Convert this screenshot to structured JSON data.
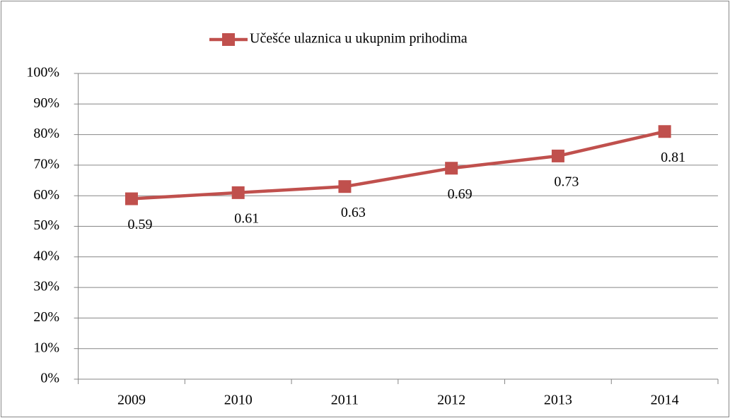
{
  "chart_data": {
    "type": "line",
    "categories": [
      "2009",
      "2010",
      "2011",
      "2012",
      "2013",
      "2014"
    ],
    "series": [
      {
        "name": "Učešće ulaznica u ukupnim prihodima",
        "color": "#c0504d",
        "values": [
          59,
          61,
          63,
          69,
          73,
          81
        ],
        "value_labels": [
          "0.59",
          "0.61",
          "0.63",
          "0.69",
          "0.73",
          "0.81"
        ]
      }
    ],
    "ylim": [
      0,
      100
    ],
    "yticks": [
      {
        "value": 0,
        "label": "0%"
      },
      {
        "value": 10,
        "label": "10%"
      },
      {
        "value": 20,
        "label": "20%"
      },
      {
        "value": 30,
        "label": "30%"
      },
      {
        "value": 40,
        "label": "40%"
      },
      {
        "value": 50,
        "label": "50%"
      },
      {
        "value": 60,
        "label": "60%"
      },
      {
        "value": 70,
        "label": "70%"
      },
      {
        "value": 80,
        "label": "80%"
      },
      {
        "value": 90,
        "label": "90%"
      },
      {
        "value": 100,
        "label": "100%"
      }
    ],
    "grid": true,
    "legend": "top"
  }
}
